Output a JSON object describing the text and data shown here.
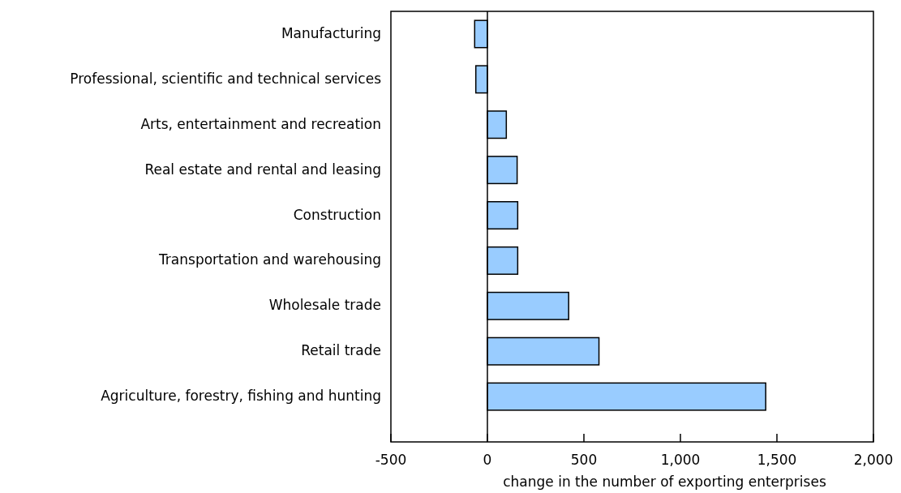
{
  "chart_data": {
    "type": "bar",
    "orientation": "horizontal",
    "xlabel": "change in the number of exporting enterprises",
    "categories": [
      "Manufacturing",
      "Professional, scientific and technical services",
      "Arts, entertainment and recreation",
      "Real estate and rental and leasing",
      "Construction",
      "Transportation and warehousing",
      "Wholesale trade",
      "Retail trade",
      "Agriculture, forestry, fishing and hunting"
    ],
    "values": [
      -66,
      -60,
      98,
      154,
      157,
      157,
      421,
      578,
      1442
    ],
    "color": "#99ccff",
    "xlim": [
      -500,
      2000
    ],
    "xticks": [
      -500,
      0,
      500,
      {
        "value": 1000,
        "label": "1,000"
      },
      {
        "value": 1500,
        "label": "1,500"
      },
      {
        "value": 2000,
        "label": "2,000"
      }
    ]
  }
}
